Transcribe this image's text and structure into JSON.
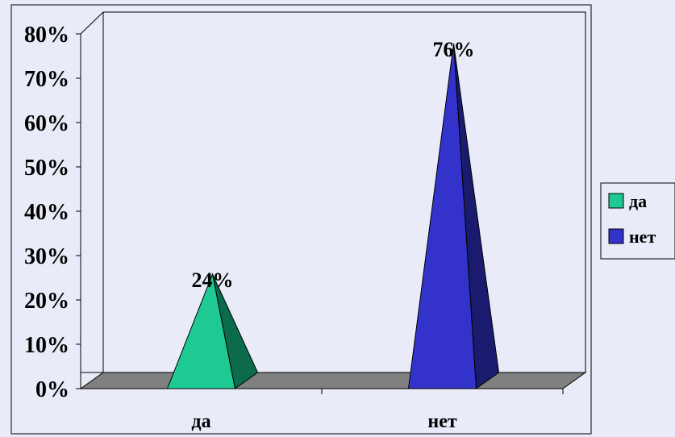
{
  "chart_data": {
    "type": "bar",
    "bar_shape": "3d-pyramid",
    "categories": [
      "да",
      "нет"
    ],
    "values": [
      24,
      76
    ],
    "value_labels": [
      "24%",
      "76%"
    ],
    "colors": [
      "#1ec994",
      "#3333cc"
    ],
    "shade_colors": [
      "#0b6b4a",
      "#1a1a6e"
    ],
    "title": "",
    "xlabel": "",
    "ylabel": "",
    "ylim": [
      0,
      80
    ],
    "yticks": [
      "0%",
      "10%",
      "20%",
      "30%",
      "40%",
      "50%",
      "60%",
      "70%",
      "80%"
    ],
    "grid": false,
    "legend": {
      "position": "right",
      "entries": [
        "да",
        "нет"
      ]
    }
  }
}
